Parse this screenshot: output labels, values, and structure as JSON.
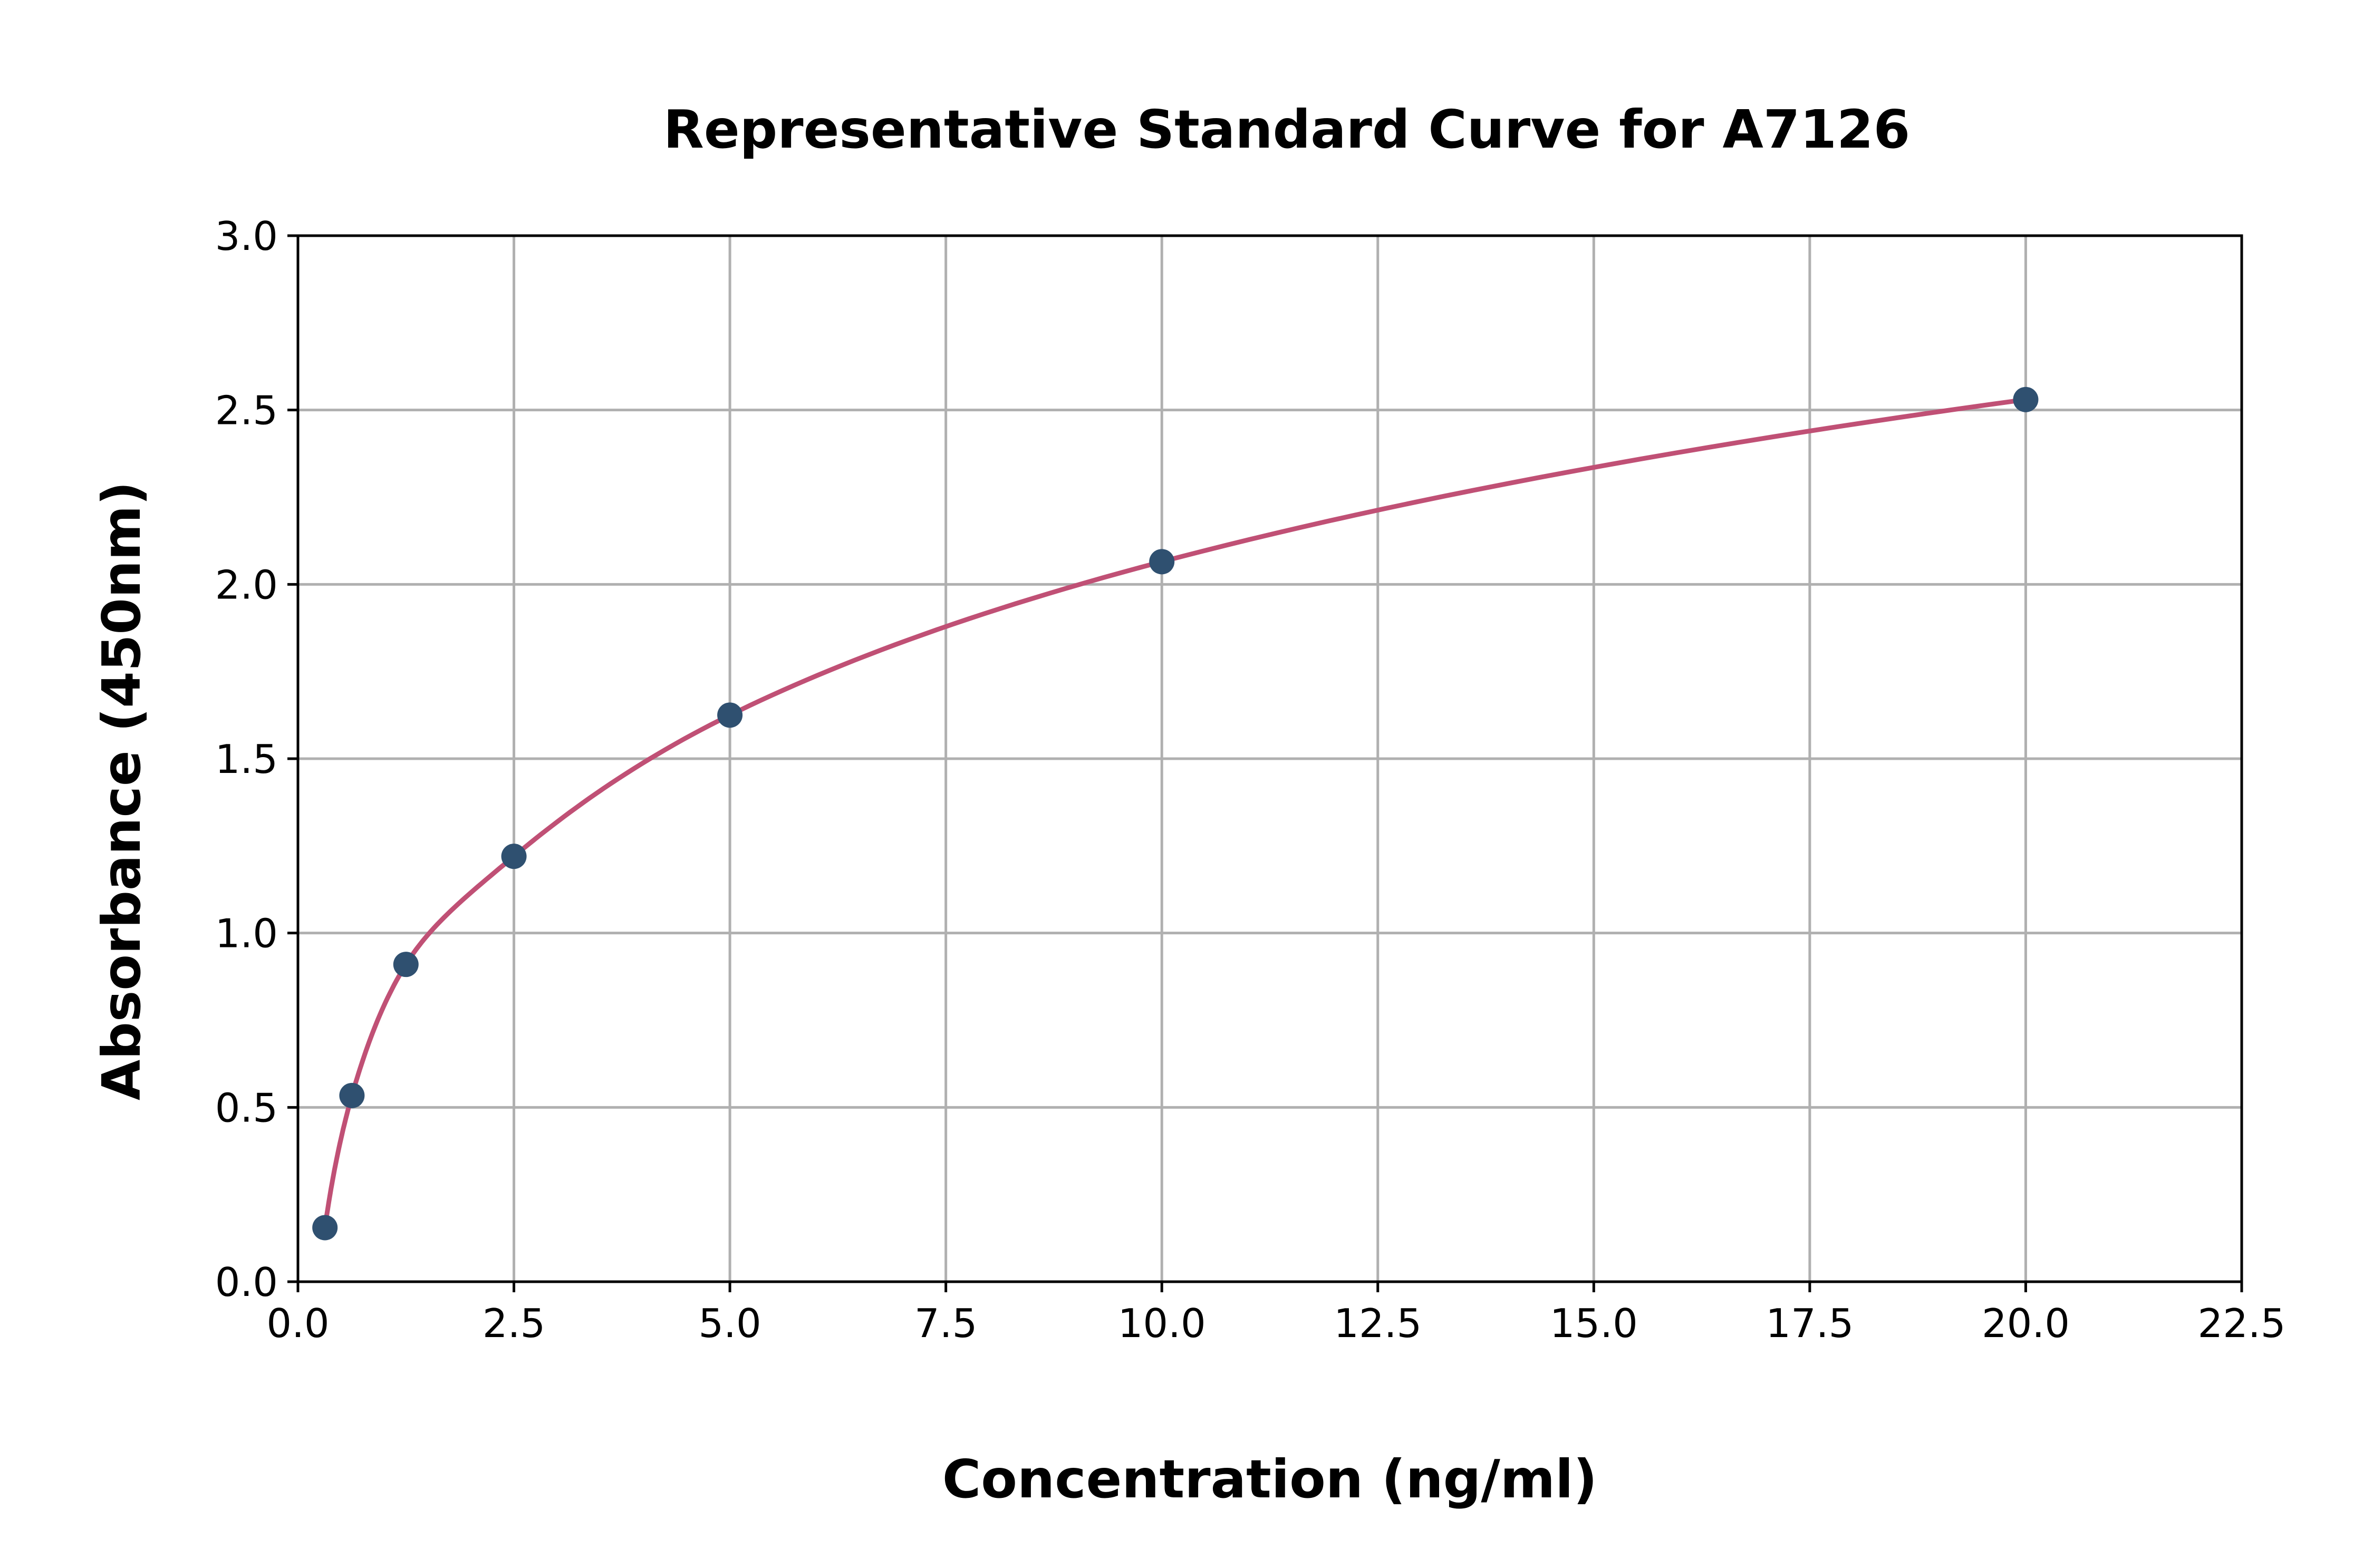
{
  "chart_data": {
    "type": "scatter",
    "title": "Representative Standard Curve for A7126",
    "xlabel": "Concentration (ng/ml)",
    "ylabel": "Absorbance (450nm)",
    "xlim": [
      0,
      22.5
    ],
    "ylim": [
      0,
      3.0
    ],
    "xticks": [
      "0.0",
      "2.5",
      "5.0",
      "7.5",
      "10.0",
      "12.5",
      "15.0",
      "17.5",
      "20.0",
      "22.5"
    ],
    "yticks": [
      "0.0",
      "0.5",
      "1.0",
      "1.5",
      "2.0",
      "2.5",
      "3.0"
    ],
    "grid": true,
    "points": [
      {
        "x": 0.3125,
        "y": 0.155
      },
      {
        "x": 0.625,
        "y": 0.534
      },
      {
        "x": 1.25,
        "y": 0.91
      },
      {
        "x": 2.5,
        "y": 1.22
      },
      {
        "x": 5,
        "y": 1.625
      },
      {
        "x": 10,
        "y": 2.065
      },
      {
        "x": 20,
        "y": 2.53
      }
    ],
    "fit_curve": true,
    "colors": {
      "points": "#2f5070",
      "curve": "#c05075",
      "grid": "#b0b0b0"
    }
  }
}
